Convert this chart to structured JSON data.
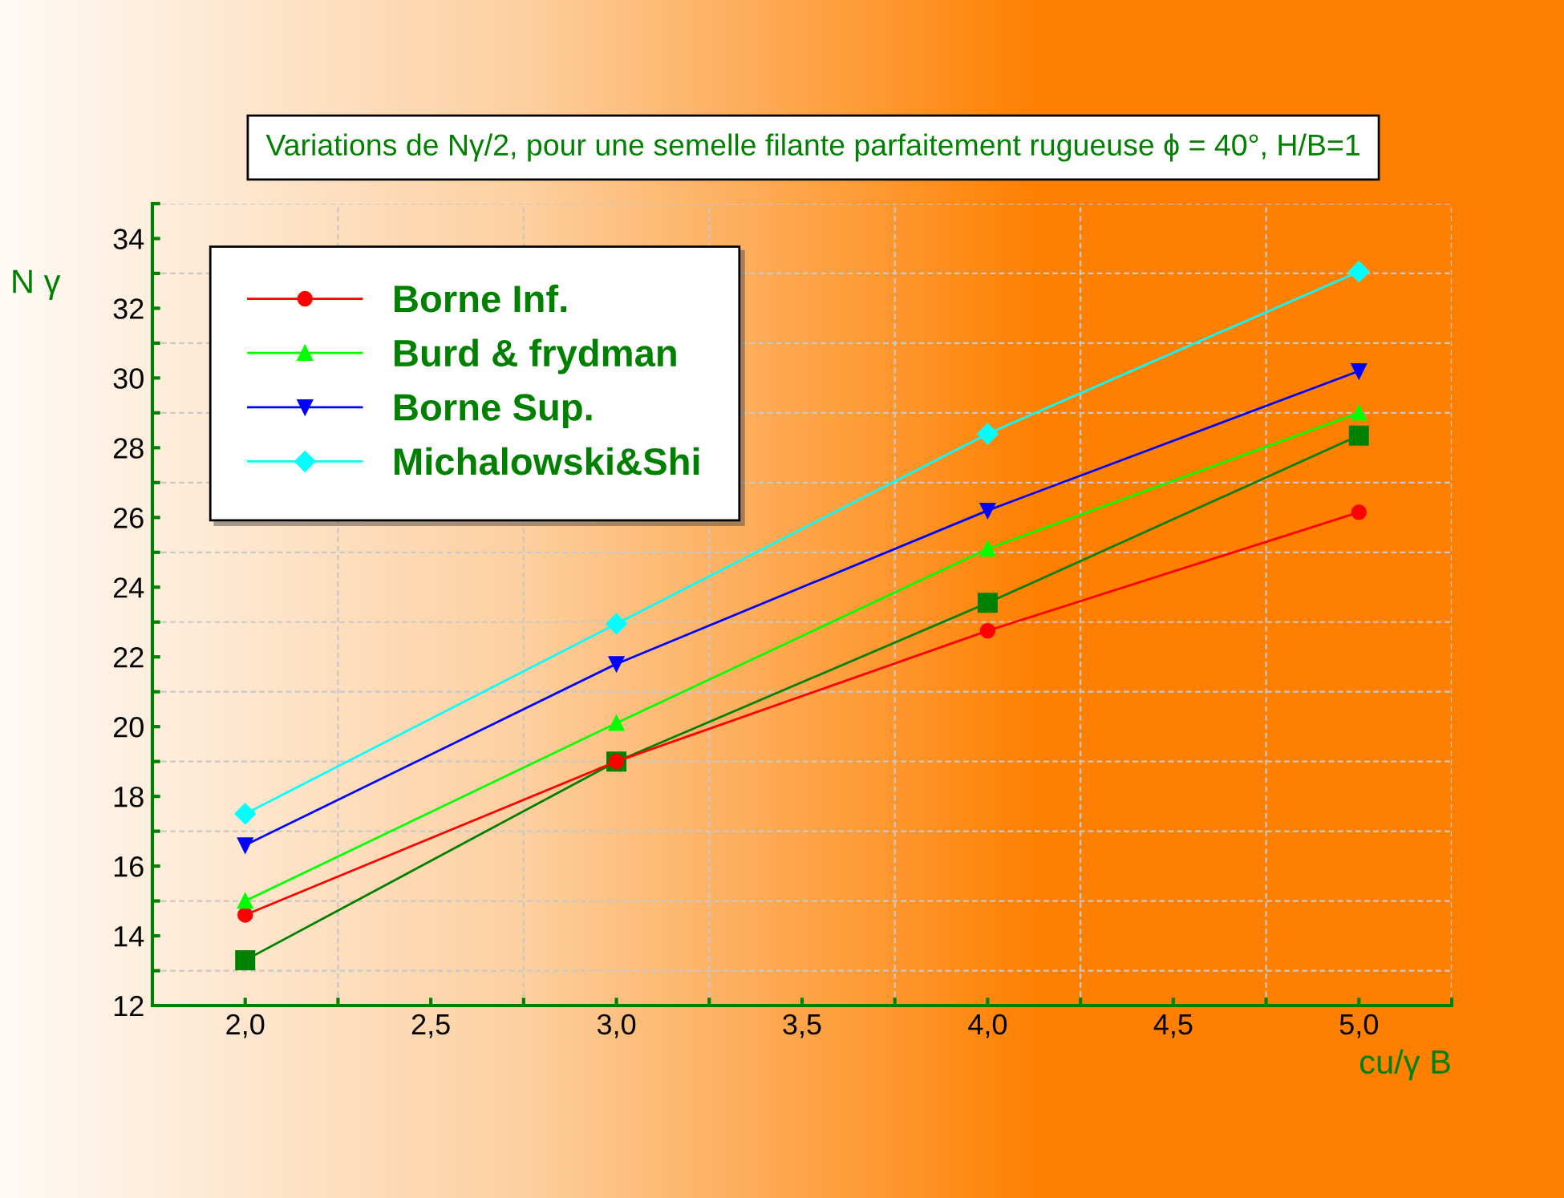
{
  "chart_data": {
    "type": "line",
    "title": "Variations de Nγ/2, pour une semelle filante parfaitement rugueuse ϕ = 40°, H/B=1",
    "xlabel": "cu/γ B",
    "ylabel": "N γ",
    "x": [
      2.0,
      3.0,
      4.0,
      5.0
    ],
    "series": [
      {
        "color": "#008000",
        "marker": "square",
        "values": [
          13.3,
          19.0,
          23.55,
          28.35
        ]
      },
      {
        "name": "Borne Inf.",
        "color": "#ff0000",
        "marker": "circle",
        "values": [
          14.6,
          19.0,
          22.75,
          26.15
        ]
      },
      {
        "name": "Burd & frydman",
        "color": "#00ff00",
        "marker": "triangle",
        "values": [
          15.0,
          20.1,
          25.1,
          29.0
        ]
      },
      {
        "name": "Borne Sup.",
        "color": "#0000ff",
        "marker": "triangle_down",
        "values": [
          16.6,
          21.8,
          26.2,
          30.2
        ]
      },
      {
        "name": "Michalowski&Shi",
        "color": "#00ffff",
        "marker": "diamond",
        "values": [
          17.5,
          22.95,
          28.4,
          33.05
        ]
      }
    ],
    "xlim": [
      1.75,
      5.25
    ],
    "ylim": [
      12,
      35
    ],
    "xticks": [
      {
        "value": 2.0,
        "label": "2,0"
      },
      {
        "value": 2.25,
        "label": null
      },
      {
        "value": 2.5,
        "label": "2,5"
      },
      {
        "value": 2.75,
        "label": null
      },
      {
        "value": 3.0,
        "label": "3,0"
      },
      {
        "value": 3.25,
        "label": null
      },
      {
        "value": 3.5,
        "label": "3,5"
      },
      {
        "value": 3.75,
        "label": null
      },
      {
        "value": 4.0,
        "label": "4,0"
      },
      {
        "value": 4.25,
        "label": null
      },
      {
        "value": 4.5,
        "label": "4,5"
      },
      {
        "value": 4.75,
        "label": null
      },
      {
        "value": 5.0,
        "label": "5,0"
      },
      {
        "value": 5.25,
        "label": null
      }
    ],
    "yticks": [
      12,
      {
        "value": 13,
        "label": null
      },
      14,
      {
        "value": 15,
        "label": null
      },
      16,
      {
        "value": 17,
        "label": null
      },
      18,
      {
        "value": 19,
        "label": null
      },
      20,
      {
        "value": 21,
        "label": null
      },
      22,
      {
        "value": 23,
        "label": null
      },
      24,
      {
        "value": 25,
        "label": null
      },
      26,
      {
        "value": 27,
        "label": null
      },
      28,
      {
        "value": 29,
        "label": null
      },
      30,
      {
        "value": 31,
        "label": null
      },
      32,
      {
        "value": 33,
        "label": null
      },
      34,
      {
        "value": 35,
        "label": null
      }
    ],
    "grid": true,
    "legend": "top left",
    "line_style": "solid"
  }
}
